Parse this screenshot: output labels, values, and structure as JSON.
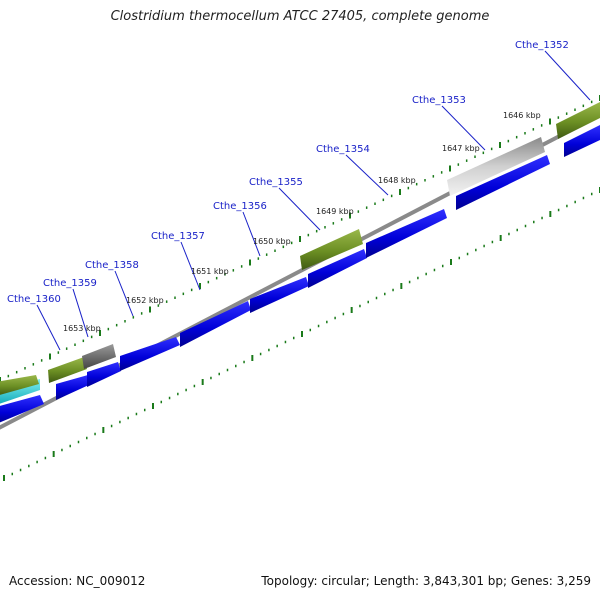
{
  "title": "Clostridium thermocellum ATCC 27405, complete genome",
  "footer": {
    "accession": "Accession: NC_009012",
    "stats": "Topology: circular; Length: 3,843,301 bp; Genes: 3,259"
  },
  "colors": {
    "cds": "#1010e0",
    "gene_green": "#6b8e23",
    "gene_gray": "#9a9a9a",
    "gene_darkgray": "#5a5a5a",
    "gene_cyan": "#20c8d0",
    "backbone": "#8a8a8a",
    "tick": "#1a7a1a",
    "label": "#1a22c8"
  },
  "gene_labels": [
    "Cthe_1352",
    "Cthe_1353",
    "Cthe_1354",
    "Cthe_1355",
    "Cthe_1356",
    "Cthe_1357",
    "Cthe_1358",
    "Cthe_1359",
    "Cthe_1360"
  ],
  "kbp_labels": [
    "1646 kbp",
    "1647 kbp",
    "1648 kbp",
    "1649 kbp",
    "1650 kbp",
    "1651 kbp",
    "1652 kbp",
    "1653 kbp"
  ]
}
